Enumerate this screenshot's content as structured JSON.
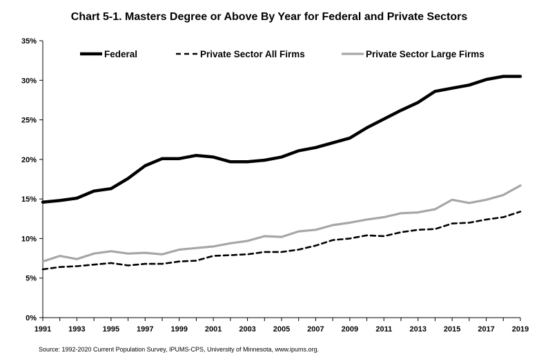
{
  "chart_data": {
    "type": "line",
    "title": "Chart 5-1.  Masters Degree or Above By Year for Federal and Private Sectors",
    "xlabel": "",
    "ylabel": "",
    "x": [
      1991,
      1992,
      1993,
      1994,
      1995,
      1996,
      1997,
      1998,
      1999,
      2000,
      2001,
      2002,
      2003,
      2004,
      2005,
      2006,
      2007,
      2008,
      2009,
      2010,
      2011,
      2012,
      2013,
      2014,
      2015,
      2016,
      2017,
      2018,
      2019
    ],
    "xticks": [
      1991,
      1993,
      1995,
      1997,
      1999,
      2001,
      2003,
      2005,
      2007,
      2009,
      2011,
      2013,
      2015,
      2017,
      2019
    ],
    "ylim": [
      0,
      35
    ],
    "yticks": [
      0,
      5,
      10,
      15,
      20,
      25,
      30,
      35
    ],
    "ytick_labels": [
      "0%",
      "5%",
      "10%",
      "15%",
      "20%",
      "25%",
      "30%",
      "35%"
    ],
    "grid": false,
    "legend_position": "top",
    "series": [
      {
        "name": "Federal",
        "color": "#000000",
        "style": "solid",
        "values": [
          14.6,
          14.8,
          15.1,
          16.0,
          16.3,
          17.6,
          19.2,
          20.1,
          20.1,
          20.5,
          20.3,
          19.7,
          19.7,
          19.9,
          20.3,
          21.1,
          21.5,
          22.1,
          22.7,
          24.0,
          25.1,
          26.2,
          27.2,
          28.6,
          29.0,
          29.4,
          30.1,
          30.5,
          30.5
        ]
      },
      {
        "name": "Private Sector All Firms",
        "color": "#000000",
        "style": "dashed",
        "values": [
          6.1,
          6.4,
          6.5,
          6.7,
          6.9,
          6.6,
          6.8,
          6.8,
          7.1,
          7.2,
          7.8,
          7.9,
          8.0,
          8.3,
          8.3,
          8.6,
          9.1,
          9.8,
          10.0,
          10.4,
          10.3,
          10.8,
          11.1,
          11.2,
          11.9,
          12.0,
          12.4,
          12.7,
          13.4
        ]
      },
      {
        "name": "Private Sector Large Firms",
        "color": "#a6a6a6",
        "style": "solid",
        "values": [
          7.1,
          7.8,
          7.4,
          8.1,
          8.4,
          8.1,
          8.2,
          8.0,
          8.6,
          8.8,
          9.0,
          9.4,
          9.7,
          10.3,
          10.2,
          10.9,
          11.1,
          11.7,
          12.0,
          12.4,
          12.7,
          13.2,
          13.3,
          13.7,
          14.9,
          14.5,
          14.9,
          15.5,
          16.7
        ]
      }
    ],
    "source": "Source:  1992-2020 Current Population Survey, IPUMS-CPS, University of Minnesota, www.ipums.org."
  }
}
